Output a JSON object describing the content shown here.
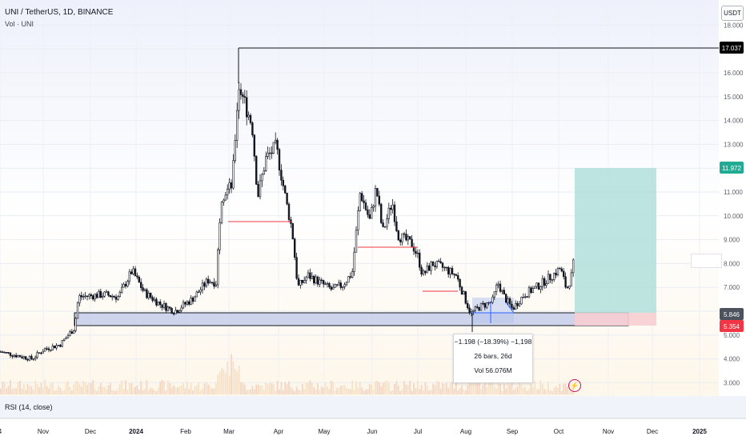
{
  "header": {
    "symbol_title": "UNI / TetherUS, 1D, BINANCE",
    "volume_label": "Vol · UNI",
    "currency_button": "USDT"
  },
  "price_axis": {
    "ticks": [
      "18.000",
      "17.000",
      "16.000",
      "15.000",
      "14.000",
      "13.000",
      "12.000",
      "11.000",
      "10.000",
      "9.000",
      "8.000",
      "7.000",
      "6.000",
      "5.000",
      "4.000",
      "3.000"
    ],
    "badges": [
      {
        "label": "17.037",
        "color": "#000000"
      },
      {
        "label": "11.972",
        "color": "#22ab94"
      },
      {
        "label": "5.846",
        "color": "#4c525e"
      },
      {
        "label": "5.354",
        "color": "#f23645"
      }
    ]
  },
  "time_axis": {
    "labels": [
      "4",
      "Nov",
      "Dec",
      "2024",
      "Feb",
      "Mar",
      "Apr",
      "May",
      "Jun",
      "Jul",
      "Aug",
      "Sep",
      "Oct",
      "Nov",
      "Dec",
      "2025"
    ]
  },
  "measure_tooltip": {
    "line1": "−1.198 (−18.39%) −1,198",
    "line2": "26 bars, 26d",
    "line3": "Vol 56.076M"
  },
  "rsi_label": "RSI (14, close)",
  "colors": {
    "up": "#131722",
    "down": "#131722",
    "support_zone": "#c5cde9",
    "profit_zone": "#b2dfdb",
    "loss_zone": "#f7cdd1",
    "red_lines": "#f23645"
  },
  "chart_data": {
    "type": "candlestick",
    "title": "UNI / TetherUS, 1D, BINANCE",
    "ylim": [
      2.7,
      18.5
    ],
    "key_levels": {
      "high": 17.037,
      "target": 11.972,
      "entry": 5.846,
      "stop": 5.354
    },
    "approx_close_path": [
      {
        "x": "Oct",
        "y": 4.3
      },
      {
        "x": "Nov",
        "y": 4.6
      },
      {
        "x": "Dec",
        "y": 6.6
      },
      {
        "x": "2024",
        "y": 7.0
      },
      {
        "x": "Feb",
        "y": 6.4
      },
      {
        "x": "Mar",
        "y": 15.5
      },
      {
        "x": "Apr",
        "y": 7.2
      },
      {
        "x": "May",
        "y": 7.1
      },
      {
        "x": "Jun",
        "y": 11.0
      },
      {
        "x": "Jul",
        "y": 8.5
      },
      {
        "x": "Aug",
        "y": 6.0
      },
      {
        "x": "Sep",
        "y": 6.2
      },
      {
        "x": "Oct",
        "y": 7.8
      }
    ]
  }
}
